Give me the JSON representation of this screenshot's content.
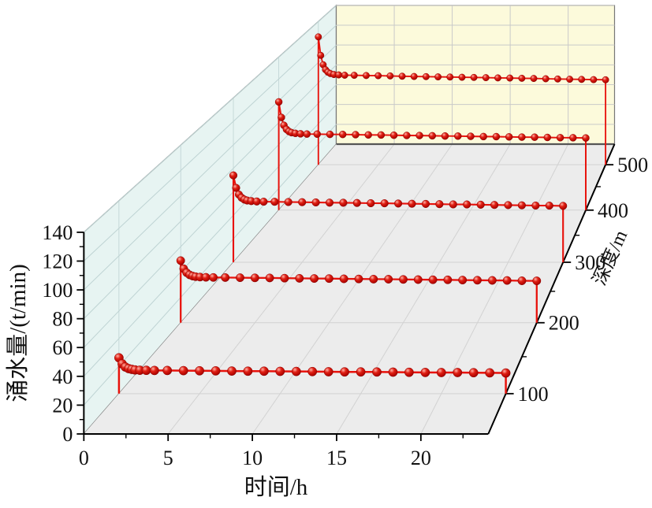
{
  "chart": {
    "colors": {
      "background": "#ffffff",
      "left_wall": "#e7f4f2",
      "left_wall_grid": "#bed3d3",
      "back_wall": "#fcfadb",
      "back_wall_grid": "#c9c9c9",
      "floor": "#ececec",
      "floor_grid": "#d2d2d2",
      "wall_edge": "#777777",
      "floor_back_edge": "#555555",
      "axis": "#000000",
      "series_line": "#e8120c",
      "ball_highlight": "#ffb3a7",
      "ball_mid": "#e02015",
      "ball_dark": "#8f0000"
    },
    "axes": {
      "x": {
        "title": "时间/h",
        "ticks": [
          0,
          5,
          10,
          15,
          20
        ],
        "minor": [
          2.5,
          7.5,
          12.5,
          17.5,
          22.5
        ],
        "range": [
          0,
          24
        ]
      },
      "y": {
        "title": "涌水量/(t/min)",
        "ticks": [
          0,
          20,
          40,
          60,
          80,
          100,
          120,
          140
        ],
        "minor": [
          10,
          30,
          50,
          70,
          90,
          110,
          130
        ],
        "range": [
          0,
          140
        ]
      },
      "z": {
        "title": "深度/m",
        "ticks": [
          100,
          200,
          300,
          400,
          500
        ],
        "minor": [
          150,
          250,
          350,
          450
        ],
        "range": [
          50,
          550
        ]
      }
    }
  },
  "chart_data": {
    "type": "line",
    "subtype": "3d-waterfall",
    "title": "",
    "xlabel": "时间/h",
    "ylabel": "涌水量/(t/min)",
    "zlabel": "深度/m",
    "xlim": [
      0,
      24
    ],
    "ylim": [
      0,
      140
    ],
    "zlim": [
      50,
      550
    ],
    "grid": true,
    "legend_position": "none",
    "times": [
      0,
      0.2,
      0.4,
      0.6,
      0.8,
      1,
      1.3,
      1.7,
      2.2,
      3,
      4,
      5,
      6,
      7,
      8,
      9,
      10,
      11,
      12,
      13,
      14,
      15,
      16,
      17,
      18,
      19,
      20,
      21,
      22,
      23,
      24
    ],
    "series": [
      {
        "name": "深度 100 m",
        "depth": 100,
        "starts_at_zero": true,
        "ends_at_zero": true,
        "values": [
          26,
          21.6,
          19.3,
          18.2,
          17.6,
          17.2,
          17,
          16.9,
          16.8,
          16.8,
          16.7,
          16.6,
          16.5,
          16.4,
          16.3,
          16.3,
          16.2,
          16.1,
          16,
          15.9,
          15.8,
          15.8,
          15.7,
          15.6,
          15.5,
          15.4,
          15.3,
          15.3,
          15.2,
          15.1,
          15
        ]
      },
      {
        "name": "深度 200 m",
        "depth": 200,
        "starts_at_zero": true,
        "ends_at_zero": true,
        "values": [
          49,
          42.6,
          39.4,
          37.7,
          36.8,
          36.3,
          36,
          35.8,
          35.7,
          35.6,
          35.5,
          35.4,
          35.3,
          35.1,
          35,
          34.9,
          34.8,
          34.6,
          34.5,
          34.4,
          34.3,
          34.1,
          34,
          33.9,
          33.8,
          33.6,
          33.5,
          33.4,
          33.3,
          33.1,
          33
        ]
      },
      {
        "name": "深度 300 m",
        "depth": 300,
        "starts_at_zero": true,
        "ends_at_zero": true,
        "values": [
          74,
          63.3,
          57.7,
          54.9,
          53.4,
          52.6,
          52.1,
          51.8,
          51.6,
          51.5,
          51.3,
          51.2,
          51,
          50.8,
          50.7,
          50.5,
          50.3,
          50.2,
          50,
          49.8,
          49.7,
          49.5,
          49.3,
          49.2,
          49,
          48.8,
          48.7,
          48.5,
          48.3,
          48.2,
          48
        ]
      },
      {
        "name": "深度 400 m",
        "depth": 400,
        "starts_at_zero": true,
        "ends_at_zero": true,
        "values": [
          99,
          84.8,
          77.6,
          73.8,
          71.9,
          70.9,
          70.2,
          69.8,
          69.6,
          69.5,
          69.3,
          69.2,
          69,
          68.8,
          68.7,
          68.5,
          68.3,
          68.2,
          68,
          67.8,
          67.7,
          67.5,
          67.3,
          67.2,
          67,
          66.8,
          66.7,
          66.5,
          66.3,
          66.2,
          66
        ]
      },
      {
        "name": "深度 500 m",
        "depth": 500,
        "starts_at_zero": true,
        "ends_at_zero": true,
        "values": [
          125,
          106.9,
          97.7,
          92.9,
          90.4,
          89.1,
          88.2,
          87.8,
          87.5,
          87.4,
          87.2,
          87,
          86.8,
          86.5,
          86.3,
          86.1,
          85.9,
          85.7,
          85.5,
          85.3,
          85.1,
          84.9,
          84.7,
          84.5,
          84.3,
          84,
          83.8,
          83.6,
          83.4,
          83.2,
          83
        ]
      }
    ]
  }
}
